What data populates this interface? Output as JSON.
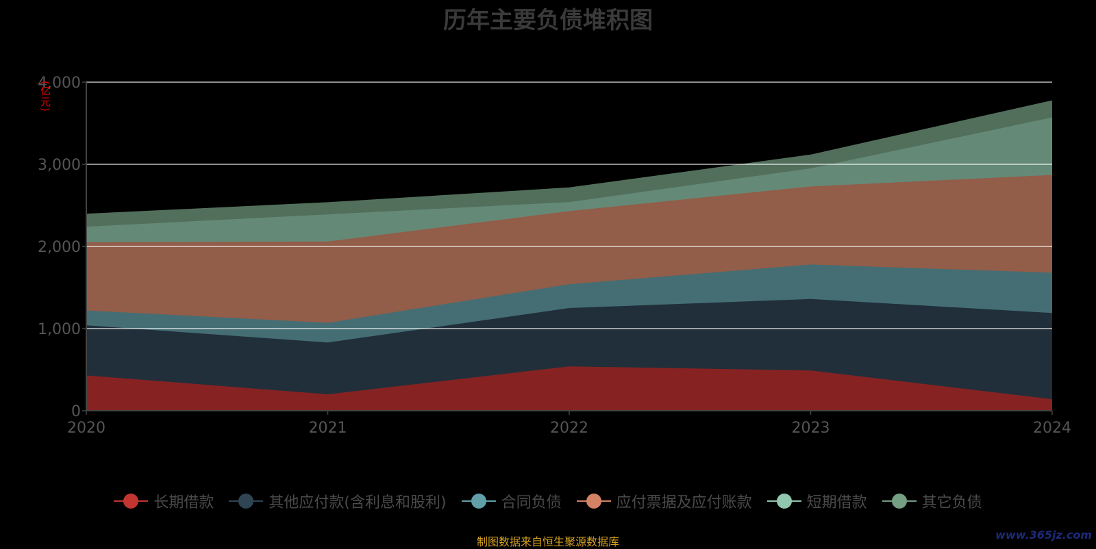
{
  "title": "历年主要负债堆积图",
  "unit_label": "(亿元)",
  "source_note": "制图数据来自恒生聚源数据库",
  "watermark": "www.365jz.com",
  "colors": {
    "background": "#000000",
    "grid": "#ffffff",
    "axis_text": "#555555",
    "unit": "#e00000",
    "source": "#d4a020"
  },
  "chart_data": {
    "type": "area",
    "stacked": true,
    "x": [
      "2020",
      "2021",
      "2022",
      "2023",
      "2024"
    ],
    "y_ticks": [
      "0",
      "1,000",
      "2,000",
      "3,000",
      "4,000"
    ],
    "ylim": [
      0,
      4000
    ],
    "grid": true,
    "legend_position": "bottom",
    "series": [
      {
        "name": "长期借款",
        "color": "#c23531",
        "fill": "#862322",
        "values": [
          430,
          200,
          540,
          490,
          140
        ]
      },
      {
        "name": "其他应付款(含利息和股利)",
        "color": "#2f4554",
        "fill": "#212f3a",
        "values": [
          610,
          630,
          710,
          870,
          1050
        ]
      },
      {
        "name": "合同负债",
        "color": "#61a0a8",
        "fill": "#446e74",
        "values": [
          180,
          240,
          290,
          420,
          490
        ]
      },
      {
        "name": "应付票据及应付账款",
        "color": "#d48265",
        "fill": "#925d49",
        "values": [
          830,
          990,
          890,
          950,
          1190
        ]
      },
      {
        "name": "短期借款",
        "color": "#91c7ae",
        "fill": "#648a77",
        "values": [
          190,
          330,
          110,
          220,
          700
        ]
      },
      {
        "name": "其它负债",
        "color": "#749f83",
        "fill": "#526f5c",
        "values": [
          150,
          140,
          170,
          160,
          200
        ]
      }
    ]
  }
}
